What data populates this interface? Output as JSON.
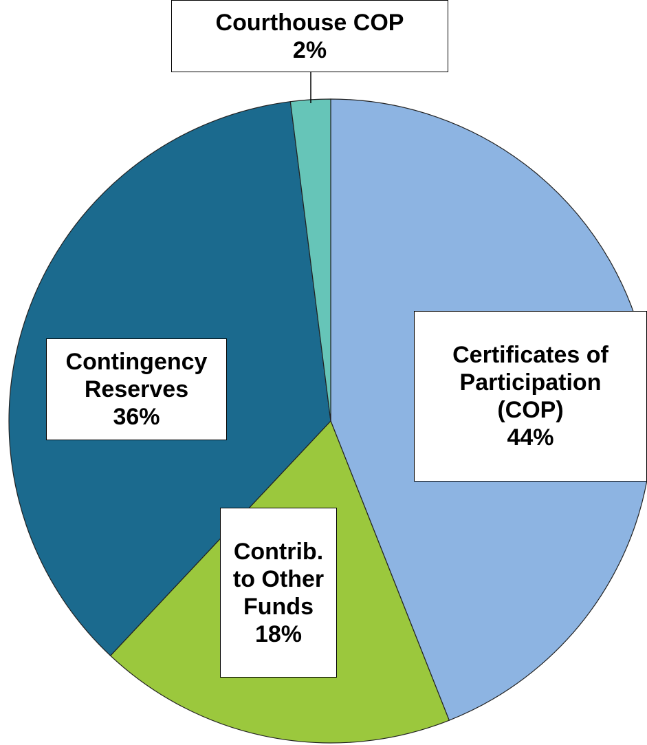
{
  "chart_data": {
    "type": "pie",
    "categories": [
      "Certificates of Participation (COP)",
      "Contrib. to Other Funds",
      "Contingency Reserves",
      "Courthouse COP"
    ],
    "values": [
      44,
      18,
      36,
      2
    ],
    "value_labels": [
      "44%",
      "18%",
      "36%",
      "2%"
    ],
    "colors": [
      "#8db4e2",
      "#9bc83d",
      "#1b6a8e",
      "#66c5b8"
    ]
  }
}
